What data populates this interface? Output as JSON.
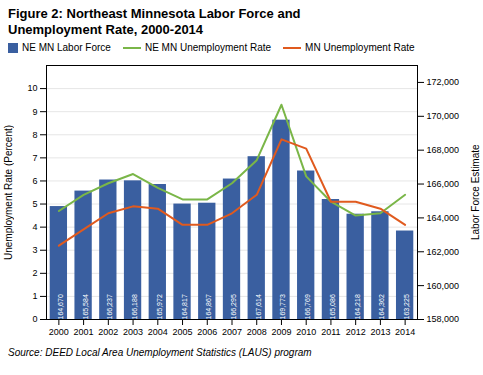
{
  "chart_data": {
    "type": "bar",
    "title": "Figure 2: Northeast Minnesota Labor Force and\nUnemployment Rate, 2000-2014",
    "caption": "Source: DEED Local Area Unemployment Statistics (LAUS) program",
    "ylabel": "Unemployment Rate (Percent)",
    "y2label": "Labor Force Estimate",
    "x": [
      2000,
      2001,
      2002,
      2003,
      2004,
      2005,
      2006,
      2007,
      2008,
      2009,
      2010,
      2011,
      2012,
      2013,
      2014
    ],
    "xlim": [
      1999.5,
      2014.5
    ],
    "xticks": [
      2000,
      2001,
      2002,
      2003,
      2004,
      2005,
      2006,
      2007,
      2008,
      2009,
      2010,
      2011,
      2012,
      2013,
      2014
    ],
    "ylim": [
      0,
      11
    ],
    "yticks": [
      0,
      1,
      2,
      3,
      4,
      5,
      6,
      7,
      8,
      9,
      10
    ],
    "y2lim": [
      158000,
      173000
    ],
    "y2ticks": [
      {
        "value": 158000,
        "label": "158,000"
      },
      {
        "value": 160000,
        "label": "160,000"
      },
      {
        "value": 162000,
        "label": "162,000"
      },
      {
        "value": 164000,
        "label": "164,000"
      },
      {
        "value": 166000,
        "label": "166,000"
      },
      {
        "value": 168000,
        "label": "168,000"
      },
      {
        "value": 170000,
        "label": "170,000"
      },
      {
        "value": 172000,
        "label": "172,000"
      }
    ],
    "grid": true,
    "legend": "upper left",
    "series": [
      {
        "name": "NE MN Labor Force",
        "type": "bar",
        "axis": "y2",
        "color": "#3a5fa0",
        "values": [
          164670,
          165584,
          166237,
          166188,
          165972,
          164817,
          164867,
          166295,
          167614,
          169773,
          166769,
          165086,
          164218,
          164362,
          163225
        ],
        "data_labels": true,
        "value_labels": [
          "164,670",
          "165,584",
          "166,237",
          "166,188",
          "165,972",
          "164,817",
          "164,867",
          "166,295",
          "167,614",
          "169,773",
          "166,769",
          "165,086",
          "164,218",
          "164,362",
          "163,225"
        ]
      },
      {
        "name": "NE MN Unemployment Rate",
        "type": "line",
        "color": "#7ab648",
        "values": [
          4.7,
          5.4,
          5.9,
          6.3,
          5.7,
          5.2,
          5.2,
          5.9,
          6.9,
          9.3,
          6.2,
          5.1,
          4.5,
          4.6,
          5.4
        ]
      },
      {
        "name": "MN Unemployment Rate",
        "type": "line",
        "color": "#e05a1e",
        "values": [
          3.2,
          3.9,
          4.6,
          4.9,
          4.8,
          4.1,
          4.1,
          4.6,
          5.4,
          7.8,
          7.4,
          5.1,
          5.1,
          4.8,
          4.1
        ]
      }
    ]
  }
}
